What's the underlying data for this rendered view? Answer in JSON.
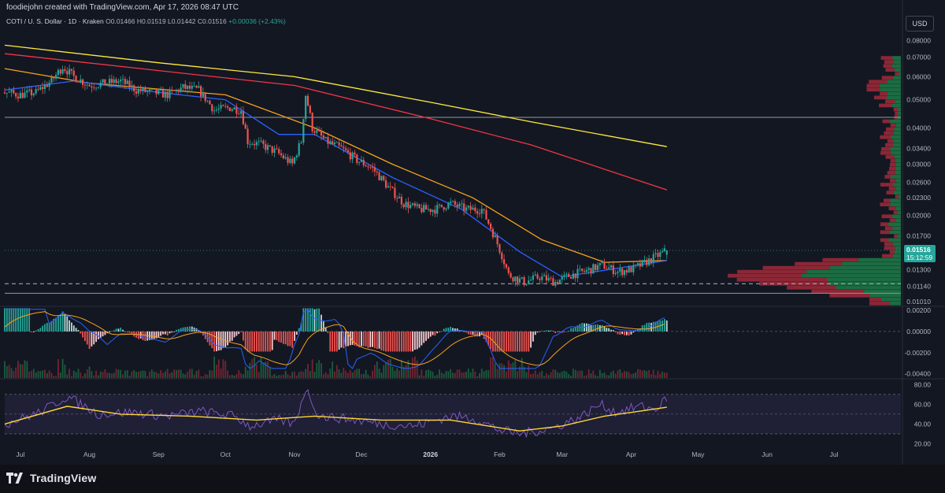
{
  "header": {
    "credit": "foodiejohn created with TradingView.com, Apr 17, 2026 08:47 UTC",
    "symbol": "COTI / U. S. Dollar · 1D · Kraken",
    "ohlc": "O0.01466 H0.01519 L0.01442 C0.01516",
    "change": "+0.00036 (+2.43%)",
    "currency": "USD"
  },
  "brand": {
    "name": "TradingView",
    "icon": "tradingview-logo-icon"
  },
  "colors": {
    "up": "#26a69a",
    "down": "#ef5350",
    "ma_fast": "#2962ff",
    "ma_mid": "#f7a21b",
    "ma_200": "#f23645",
    "ma_300": "#ffeb3b",
    "rsi": "#7e57c2",
    "rsi_ma": "#fdd835",
    "price_badge": "#26a69a"
  },
  "chart_data": [
    {
      "type": "candlestick",
      "title": "COTI / U. S. Dollar · 1D · Kraken",
      "scale": "log",
      "ylim": [
        0.0098,
        0.088
      ],
      "y_ticks": [
        "0.08000",
        "0.07000",
        "0.06000",
        "0.05000",
        "0.04000",
        "0.03400",
        "0.03000",
        "0.02600",
        "0.02300",
        "0.02000",
        "0.01700",
        "0.01300",
        "0.01140",
        "0.01010"
      ],
      "x_ticks": [
        "Jul",
        "Aug",
        "Sep",
        "Oct",
        "Nov",
        "Dec",
        "2026",
        "Feb",
        "Mar",
        "Apr",
        "May",
        "Jun",
        "Jul"
      ],
      "price_path": [
        [
          "2025-06-24",
          0.053
        ],
        [
          "2025-07-01",
          0.052
        ],
        [
          "2025-07-08",
          0.053
        ],
        [
          "2025-07-15",
          0.058
        ],
        [
          "2025-07-20",
          0.065
        ],
        [
          "2025-07-25",
          0.06
        ],
        [
          "2025-08-01",
          0.056
        ],
        [
          "2025-08-08",
          0.057
        ],
        [
          "2025-08-15",
          0.058
        ],
        [
          "2025-08-22",
          0.054
        ],
        [
          "2025-08-29",
          0.053
        ],
        [
          "2025-09-05",
          0.052
        ],
        [
          "2025-09-12",
          0.055
        ],
        [
          "2025-09-19",
          0.054
        ],
        [
          "2025-09-26",
          0.046
        ],
        [
          "2025-10-03",
          0.047
        ],
        [
          "2025-10-08",
          0.046
        ],
        [
          "2025-10-11",
          0.036
        ],
        [
          "2025-10-17",
          0.035
        ],
        [
          "2025-10-24",
          0.033
        ],
        [
          "2025-10-31",
          0.03
        ],
        [
          "2025-11-04",
          0.036
        ],
        [
          "2025-11-06",
          0.052
        ],
        [
          "2025-11-09",
          0.04
        ],
        [
          "2025-11-15",
          0.036
        ],
        [
          "2025-11-22",
          0.034
        ],
        [
          "2025-11-29",
          0.031
        ],
        [
          "2025-12-06",
          0.029
        ],
        [
          "2025-12-13",
          0.025
        ],
        [
          "2025-12-20",
          0.022
        ],
        [
          "2025-12-27",
          0.021
        ],
        [
          "2026-01-03",
          0.021
        ],
        [
          "2026-01-10",
          0.022
        ],
        [
          "2026-01-17",
          0.021
        ],
        [
          "2026-01-24",
          0.021
        ],
        [
          "2026-01-31",
          0.016
        ],
        [
          "2026-02-05",
          0.0125
        ],
        [
          "2026-02-12",
          0.0118
        ],
        [
          "2026-02-19",
          0.0123
        ],
        [
          "2026-02-26",
          0.0118
        ],
        [
          "2026-03-05",
          0.0125
        ],
        [
          "2026-03-12",
          0.0129
        ],
        [
          "2026-03-19",
          0.0135
        ],
        [
          "2026-03-26",
          0.0128
        ],
        [
          "2026-04-02",
          0.0131
        ],
        [
          "2026-04-09",
          0.014
        ],
        [
          "2026-04-17",
          0.01516
        ]
      ],
      "moving_averages": [
        {
          "name": "ma_300",
          "values": [
            [
              "2025-06-24",
              0.077
            ],
            [
              "2025-09-01",
              0.067
            ],
            [
              "2025-11-01",
              0.06
            ],
            [
              "2026-01-01",
              0.049
            ],
            [
              "2026-02-15",
              0.042
            ],
            [
              "2026-04-17",
              0.0345
            ]
          ]
        },
        {
          "name": "ma_200",
          "values": [
            [
              "2025-06-24",
              0.072
            ],
            [
              "2025-09-01",
              0.063
            ],
            [
              "2025-11-01",
              0.056
            ],
            [
              "2026-01-01",
              0.043
            ],
            [
              "2026-02-15",
              0.035
            ],
            [
              "2026-04-17",
              0.0245
            ]
          ]
        },
        {
          "name": "ma_mid",
          "values": [
            [
              "2025-06-24",
              0.064
            ],
            [
              "2025-08-01",
              0.057
            ],
            [
              "2025-10-01",
              0.052
            ],
            [
              "2025-11-10",
              0.04
            ],
            [
              "2025-12-15",
              0.03
            ],
            [
              "2026-01-20",
              0.023
            ],
            [
              "2026-02-20",
              0.0165
            ],
            [
              "2026-03-20",
              0.0138
            ],
            [
              "2026-04-17",
              0.014
            ]
          ]
        },
        {
          "name": "ma_fast",
          "values": [
            [
              "2025-06-24",
              0.054
            ],
            [
              "2025-07-25",
              0.058
            ],
            [
              "2025-09-01",
              0.053
            ],
            [
              "2025-10-01",
              0.05
            ],
            [
              "2025-10-25",
              0.038
            ],
            [
              "2025-11-10",
              0.038
            ],
            [
              "2025-12-15",
              0.027
            ],
            [
              "2026-01-15",
              0.021
            ],
            [
              "2026-02-10",
              0.015
            ],
            [
              "2026-03-01",
              0.0123
            ],
            [
              "2026-04-17",
              0.014
            ]
          ]
        }
      ],
      "horizontal_lines": [
        0.0435,
        0.01165,
        0.0108
      ],
      "last_price": "0.01516",
      "countdown": "15:12:59"
    },
    {
      "type": "histogram",
      "title": "MACD",
      "y_ticks": [
        "0.00200",
        "0.00000",
        "-0.00200",
        "-0.00400"
      ],
      "ylim": [
        -0.0044,
        0.0023
      ]
    },
    {
      "type": "line",
      "title": "RSI",
      "y_ticks": [
        "80.00",
        "60.00",
        "40.00",
        "20.00"
      ],
      "ylim": [
        18,
        85
      ],
      "rsi_path": [
        [
          "2025-06-24",
          40
        ],
        [
          "2025-07-10",
          52
        ],
        [
          "2025-07-22",
          68
        ],
        [
          "2025-08-05",
          50
        ],
        [
          "2025-08-20",
          52
        ],
        [
          "2025-09-05",
          48
        ],
        [
          "2025-09-20",
          53
        ],
        [
          "2025-10-05",
          48
        ],
        [
          "2025-10-12",
          38
        ],
        [
          "2025-10-25",
          44
        ],
        [
          "2025-11-01",
          40
        ],
        [
          "2025-11-06",
          76
        ],
        [
          "2025-11-12",
          48
        ],
        [
          "2025-11-25",
          45
        ],
        [
          "2025-12-10",
          40
        ],
        [
          "2025-12-25",
          38
        ],
        [
          "2026-01-10",
          48
        ],
        [
          "2026-01-20",
          46
        ],
        [
          "2026-02-01",
          34
        ],
        [
          "2026-02-10",
          30
        ],
        [
          "2026-02-25",
          36
        ],
        [
          "2026-03-10",
          48
        ],
        [
          "2026-03-18",
          60
        ],
        [
          "2026-03-25",
          52
        ],
        [
          "2026-04-05",
          58
        ],
        [
          "2026-04-12",
          55
        ],
        [
          "2026-04-17",
          66
        ]
      ],
      "rsi_ma_path": [
        [
          "2025-06-24",
          40
        ],
        [
          "2025-07-22",
          58
        ],
        [
          "2025-08-15",
          50
        ],
        [
          "2025-09-15",
          48
        ],
        [
          "2025-10-15",
          44
        ],
        [
          "2025-11-10",
          48
        ],
        [
          "2025-12-10",
          44
        ],
        [
          "2026-01-10",
          44
        ],
        [
          "2026-02-10",
          33
        ],
        [
          "2026-03-01",
          38
        ],
        [
          "2026-03-20",
          48
        ],
        [
          "2026-04-05",
          53
        ],
        [
          "2026-04-17",
          57
        ]
      ]
    }
  ]
}
